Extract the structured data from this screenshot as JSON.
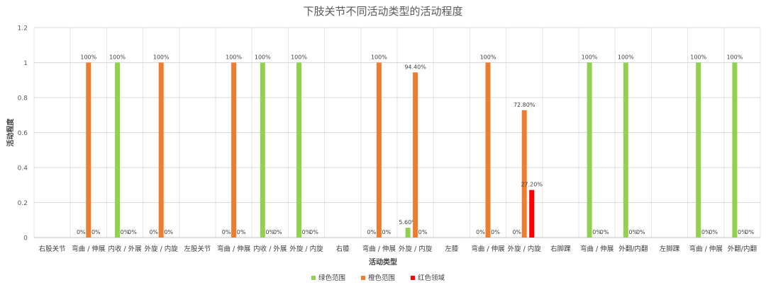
{
  "chart_data": {
    "type": "bar",
    "title": "下肢关节不同活动类型的活动程度",
    "xlabel": "活动类型",
    "ylabel": "活动程度",
    "ylim": [
      0,
      1.2
    ],
    "yticks": [
      "0",
      "0.2",
      "0.4",
      "0.6",
      "0.8",
      "1",
      "1.2"
    ],
    "grid": true,
    "legend_position": "bottom",
    "categories": [
      "右股关节",
      "弯曲 / 伸展",
      "内收 / 外展",
      "外旋 / 内旋",
      "左股关节",
      "弯曲 / 伸展",
      "内收 / 外展",
      "外旋 / 内旋",
      "右膝",
      "弯曲 / 伸展",
      "外旋 / 内旋",
      "左膝",
      "弯曲 / 伸展",
      "外旋 / 内旋",
      "右脚踝",
      "弯曲 / 伸展",
      "外翻/内翻",
      "左脚踝",
      "弯曲 / 伸展",
      "外翻/内翻"
    ],
    "series": [
      {
        "name": "绿色范围",
        "color": "#92D050",
        "values": [
          null,
          0,
          1,
          0,
          null,
          0,
          1,
          1,
          null,
          0,
          0.056,
          null,
          0,
          0,
          null,
          1,
          1,
          null,
          1,
          1
        ],
        "labels": [
          "",
          "0%",
          "100%",
          "0%",
          "",
          "0%",
          "100%",
          "100%",
          "",
          "0%",
          "5.60%",
          "",
          "0%",
          "0%",
          "",
          "100%",
          "100%",
          "",
          "100%",
          "100%"
        ]
      },
      {
        "name": "橙色范围",
        "color": "#ED7D31",
        "values": [
          null,
          1,
          0,
          1,
          null,
          1,
          0,
          0,
          null,
          1,
          0.944,
          null,
          1,
          0.728,
          null,
          0,
          0,
          null,
          0,
          0
        ],
        "labels": [
          "",
          "100%",
          "0%",
          "100%",
          "",
          "100%",
          "0%",
          "0%",
          "",
          "100%",
          "94.40%",
          "",
          "100%",
          "72.80%",
          "",
          "0%",
          "0%",
          "",
          "0%",
          "0%"
        ]
      },
      {
        "name": "红色领域",
        "color": "#FF0000",
        "values": [
          null,
          0,
          0,
          0,
          null,
          0,
          0,
          0,
          null,
          0,
          0,
          null,
          0,
          0.272,
          null,
          0,
          0,
          null,
          0,
          0
        ],
        "labels": [
          "",
          "0%",
          "0%",
          "0%",
          "",
          "0%",
          "0%",
          "0%",
          "",
          "0%",
          "0%",
          "",
          "0%",
          "27.20%",
          "",
          "0%",
          "0%",
          "",
          "0%",
          "0%"
        ]
      }
    ]
  }
}
